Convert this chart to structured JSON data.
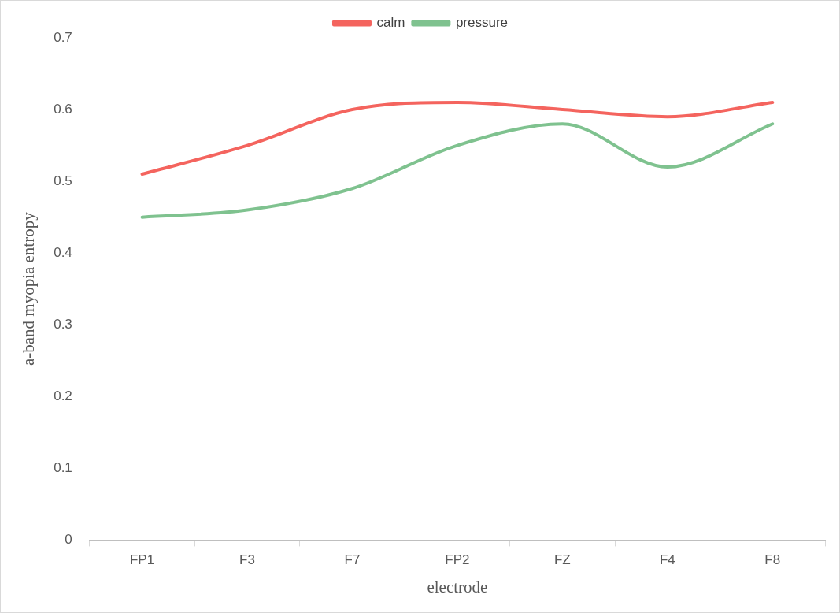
{
  "chart_data": {
    "type": "line",
    "categories": [
      "FP1",
      "F3",
      "F7",
      "FP2",
      "FZ",
      "F4",
      "F8"
    ],
    "series": [
      {
        "name": "calm",
        "color": "#f4645e",
        "values": [
          0.51,
          0.55,
          0.6,
          0.61,
          0.6,
          0.59,
          0.61
        ]
      },
      {
        "name": "pressure",
        "color": "#7fc28f",
        "values": [
          0.45,
          0.46,
          0.49,
          0.55,
          0.58,
          0.52,
          0.58
        ]
      }
    ],
    "xlabel": "electrode",
    "ylabel": "a-band myopia entropy",
    "ylim": [
      0,
      0.7
    ],
    "yticks": [
      0,
      0.1,
      0.2,
      0.3,
      0.4,
      0.5,
      0.6,
      0.7
    ],
    "grid": false,
    "legend": "top",
    "marker": "none",
    "line_style": "solid"
  }
}
